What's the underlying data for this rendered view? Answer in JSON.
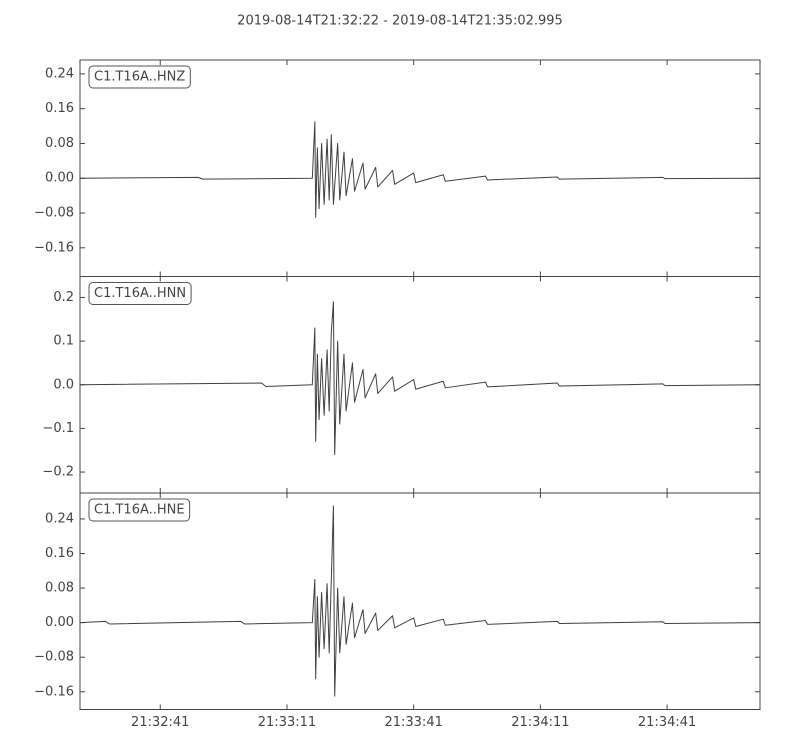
{
  "title": "2019-08-14T21:32:22  -  2019-08-14T21:35:02.995",
  "chart_data": [
    {
      "type": "line",
      "label": "C1.T16A..HNZ",
      "color": "#404040",
      "ylim": [
        -0.226,
        0.272
      ],
      "yticks": [
        0.24,
        0.16,
        0.08,
        {
          "value": 0,
          "label": "0.00"
        },
        {
          "value": -0.08,
          "label": "−0.08"
        },
        {
          "value": -0.16,
          "label": "−0.16"
        }
      ],
      "xlim": [
        77542,
        77702.995
      ],
      "x": [
        77542,
        77570,
        77571,
        77597,
        77597.6,
        77597.8,
        77598.2,
        77598.6,
        77599.2,
        77599.8,
        77600.5,
        77601,
        77601.5,
        77602,
        77603,
        77603.5,
        77604.5,
        77605,
        77606.5,
        77607,
        77609,
        77609.5,
        77612,
        77612.5,
        77616,
        77616.5,
        77621,
        77621.5,
        77628,
        77628.5,
        77638,
        77638.5,
        77655,
        77655.5,
        77680,
        77680.5,
        77702.995
      ],
      "values": [
        0,
        0.002,
        -0.002,
        0,
        0.13,
        -0.09,
        0.07,
        -0.07,
        0.08,
        -0.06,
        0.09,
        -0.05,
        0.1,
        -0.06,
        0.08,
        -0.05,
        0.06,
        -0.04,
        0.045,
        -0.03,
        0.035,
        -0.025,
        0.025,
        -0.02,
        0.018,
        -0.014,
        0.012,
        -0.01,
        0.008,
        -0.007,
        0.005,
        -0.004,
        0.003,
        -0.002,
        0.002,
        -0.001,
        0
      ]
    },
    {
      "type": "line",
      "label": "C1.T16A..HNN",
      "color": "#404040",
      "ylim": [
        -0.248,
        0.248
      ],
      "yticks": [
        0.2,
        0.1,
        {
          "value": 0,
          "label": "0.0"
        },
        {
          "value": -0.1,
          "label": "−0.1"
        },
        {
          "value": -0.2,
          "label": "−0.2"
        }
      ],
      "xlim": [
        77542,
        77702.995
      ],
      "x": [
        77542,
        77585,
        77586,
        77597,
        77597.6,
        77597.8,
        77598.2,
        77598.6,
        77599.2,
        77599.8,
        77600.5,
        77601,
        77601.5,
        77602,
        77602.3,
        77603,
        77603.5,
        77604.5,
        77605,
        77606.5,
        77607,
        77609,
        77609.5,
        77612,
        77612.5,
        77616,
        77616.5,
        77621,
        77621.5,
        77628,
        77628.5,
        77638,
        77638.5,
        77655,
        77655.5,
        77680,
        77680.5,
        77702.995
      ],
      "values": [
        0,
        0.004,
        -0.004,
        0,
        0.13,
        -0.13,
        0.07,
        -0.08,
        0.06,
        -0.07,
        0.08,
        -0.06,
        0.12,
        0.19,
        -0.16,
        0.1,
        -0.09,
        0.07,
        -0.06,
        0.05,
        -0.04,
        0.035,
        -0.03,
        0.025,
        -0.02,
        0.018,
        -0.015,
        0.012,
        -0.01,
        0.008,
        -0.007,
        0.006,
        -0.005,
        0.004,
        -0.003,
        0.002,
        -0.002,
        0
      ]
    },
    {
      "type": "line",
      "label": "C1.T16A..HNE",
      "color": "#404040",
      "ylim": [
        -0.201,
        0.3
      ],
      "yticks": [
        0.24,
        0.16,
        0.08,
        {
          "value": 0,
          "label": "0.00"
        },
        {
          "value": -0.08,
          "label": "−0.08"
        },
        {
          "value": -0.16,
          "label": "−0.16"
        }
      ],
      "xlim": [
        77542,
        77702.995
      ],
      "xticks": [
        {
          "value": 77561,
          "label": "21:32:41"
        },
        {
          "value": 77591,
          "label": "21:33:11"
        },
        {
          "value": 77621,
          "label": "21:33:41"
        },
        {
          "value": 77651,
          "label": "21:34:11"
        },
        {
          "value": 77681,
          "label": "21:34:41"
        }
      ],
      "x": [
        77542,
        77548,
        77549,
        77580,
        77581,
        77597,
        77597.6,
        77597.8,
        77598.2,
        77598.6,
        77599.2,
        77599.8,
        77600.5,
        77601,
        77601.5,
        77602,
        77602.3,
        77603,
        77603.5,
        77604.5,
        77605,
        77606.5,
        77607,
        77609,
        77609.5,
        77612,
        77612.5,
        77616,
        77616.5,
        77621,
        77621.5,
        77628,
        77628.5,
        77638,
        77638.5,
        77655,
        77655.5,
        77680,
        77680.5,
        77702.995
      ],
      "values": [
        0,
        0.003,
        -0.003,
        0.003,
        -0.003,
        0,
        0.1,
        -0.13,
        0.06,
        -0.08,
        0.07,
        -0.06,
        0.09,
        -0.07,
        0.1,
        0.27,
        -0.17,
        0.08,
        -0.07,
        0.06,
        -0.05,
        0.045,
        -0.035,
        0.03,
        -0.025,
        0.022,
        -0.018,
        0.016,
        -0.012,
        0.011,
        -0.009,
        0.008,
        -0.006,
        0.005,
        -0.004,
        0.003,
        -0.002,
        0.002,
        -0.002,
        0
      ]
    }
  ]
}
